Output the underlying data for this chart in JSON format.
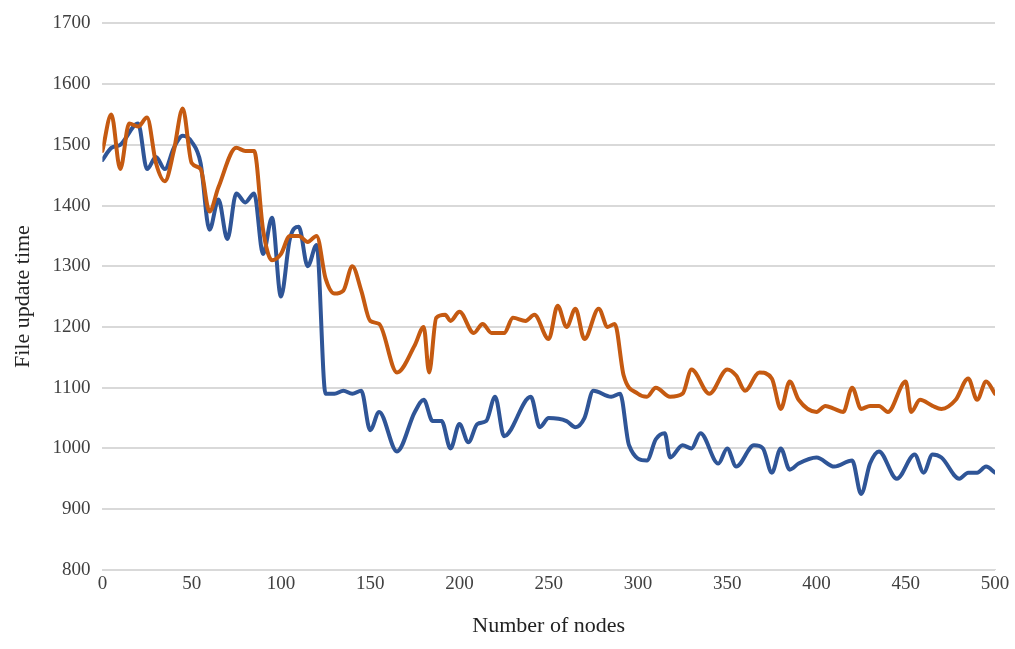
{
  "chart_data": {
    "type": "line",
    "xlabel": "Number of nodes",
    "ylabel": "File update time",
    "xlim": [
      0,
      500
    ],
    "xticks": [
      0,
      50,
      100,
      150,
      200,
      250,
      300,
      350,
      400,
      450,
      500
    ],
    "ylim": [
      800,
      1700
    ],
    "yticks": [
      800,
      900,
      1000,
      1100,
      1200,
      1300,
      1400,
      1500,
      1600,
      1700
    ],
    "grid": "y",
    "legend": false,
    "marker": "none",
    "line_style": "solid",
    "series": [
      {
        "color": "#c55a11",
        "x": [
          0,
          5,
          10,
          15,
          20,
          25,
          30,
          35,
          40,
          45,
          50,
          55,
          60,
          65,
          75,
          80,
          85,
          90,
          95,
          100,
          105,
          110,
          115,
          120,
          125,
          130,
          135,
          140,
          145,
          150,
          155,
          165,
          175,
          180,
          183,
          187,
          192,
          195,
          200,
          208,
          213,
          218,
          225,
          230,
          237,
          242,
          250,
          255,
          260,
          265,
          270,
          278,
          283,
          287,
          292,
          300,
          305,
          310,
          318,
          325,
          330,
          340,
          350,
          355,
          360,
          368,
          375,
          380,
          385,
          390,
          400,
          405,
          410,
          415,
          420,
          425,
          430,
          435,
          440,
          450,
          453,
          458,
          465,
          470,
          478,
          485,
          490,
          495,
          500
        ],
        "values": [
          1490,
          1550,
          1460,
          1535,
          1530,
          1545,
          1470,
          1440,
          1490,
          1560,
          1470,
          1460,
          1390,
          1430,
          1495,
          1490,
          1490,
          1360,
          1310,
          1320,
          1350,
          1350,
          1340,
          1350,
          1280,
          1255,
          1260,
          1300,
          1260,
          1210,
          1205,
          1125,
          1170,
          1200,
          1125,
          1215,
          1220,
          1210,
          1225,
          1190,
          1205,
          1190,
          1190,
          1215,
          1210,
          1220,
          1180,
          1235,
          1200,
          1230,
          1180,
          1230,
          1200,
          1205,
          1120,
          1090,
          1085,
          1100,
          1085,
          1090,
          1130,
          1090,
          1130,
          1120,
          1095,
          1125,
          1115,
          1065,
          1110,
          1080,
          1060,
          1070,
          1065,
          1060,
          1100,
          1065,
          1070,
          1070,
          1060,
          1110,
          1060,
          1080,
          1070,
          1065,
          1080,
          1115,
          1080,
          1110,
          1090
        ]
      },
      {
        "color": "#2f5597",
        "x": [
          0,
          5,
          10,
          20,
          25,
          30,
          35,
          40,
          45,
          50,
          55,
          60,
          65,
          70,
          75,
          80,
          85,
          90,
          95,
          100,
          105,
          110,
          115,
          120,
          125,
          130,
          135,
          140,
          145,
          150,
          155,
          165,
          175,
          180,
          185,
          190,
          195,
          200,
          205,
          210,
          215,
          220,
          225,
          240,
          245,
          250,
          260,
          265,
          270,
          275,
          285,
          290,
          295,
          305,
          310,
          315,
          318,
          325,
          330,
          335,
          345,
          350,
          355,
          365,
          370,
          375,
          380,
          385,
          390,
          400,
          410,
          420,
          425,
          430,
          435,
          445,
          455,
          460,
          465,
          470,
          480,
          485,
          490,
          495,
          500
        ],
        "values": [
          1475,
          1495,
          1500,
          1535,
          1460,
          1480,
          1460,
          1495,
          1515,
          1505,
          1470,
          1360,
          1410,
          1345,
          1420,
          1405,
          1420,
          1320,
          1380,
          1250,
          1345,
          1365,
          1300,
          1335,
          1090,
          1090,
          1095,
          1090,
          1095,
          1030,
          1060,
          995,
          1060,
          1080,
          1045,
          1045,
          1000,
          1040,
          1010,
          1040,
          1045,
          1085,
          1020,
          1085,
          1035,
          1050,
          1045,
          1035,
          1050,
          1095,
          1085,
          1090,
          1005,
          980,
          1015,
          1025,
          985,
          1005,
          1000,
          1025,
          975,
          1000,
          970,
          1005,
          1000,
          960,
          1000,
          965,
          975,
          985,
          970,
          980,
          925,
          975,
          995,
          950,
          990,
          960,
          990,
          985,
          950,
          960,
          960,
          970,
          960
        ]
      }
    ]
  }
}
